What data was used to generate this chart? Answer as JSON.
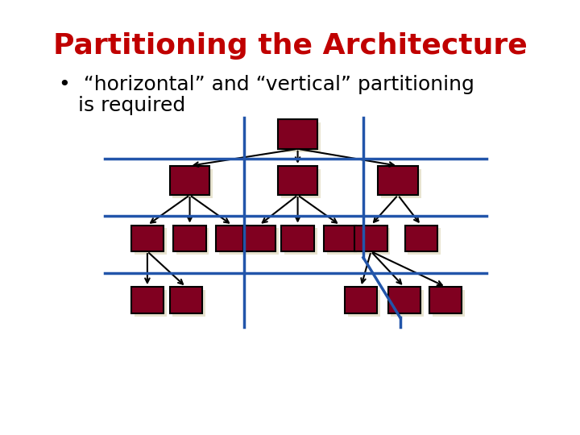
{
  "title": "Partitioning the Architecture",
  "title_color": "#C00000",
  "title_fontsize": 26,
  "bullet_text_line1": "•  “horizontal” and “vertical” partitioning",
  "bullet_text_line2": "   is required",
  "bullet_fontsize": 18,
  "bg_color": "#ffffff",
  "box_color": "#800020",
  "box_edge_color": "#000000",
  "shadow_color": "#e8e4d0",
  "line_color": "#2255aa",
  "line_width": 2.5,
  "arrow_color": "#000000",
  "fig_width": 7.2,
  "fig_height": 5.4
}
